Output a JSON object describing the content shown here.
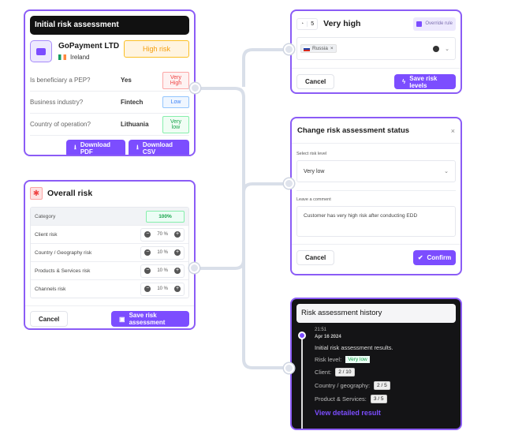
{
  "initial": {
    "title": "Initial risk assessment",
    "company": "GoPayment LTD",
    "country": "Ireland",
    "risk": "High risk",
    "questions": [
      {
        "q": "Is beneficiary a PEP?",
        "a": "Yes",
        "level": "Very High",
        "color": "#ef4444"
      },
      {
        "q": "Business industry?",
        "a": "Fintech",
        "level": "Low",
        "color": "#3b82f6"
      },
      {
        "q": "Country of operation?",
        "a": "Lithuania",
        "level": "Very low",
        "color": "#16a34a"
      }
    ],
    "download_pdf": "Download PDF",
    "download_csv": "Download CSV"
  },
  "overall": {
    "title": "Overall risk",
    "header_label": "Category",
    "header_total": "100%",
    "rows": [
      {
        "label": "Client risk",
        "value": "70 %"
      },
      {
        "label": "Country / Geography risk",
        "value": "10 %"
      },
      {
        "label": "Products & Services risk",
        "value": "10 %"
      },
      {
        "label": "Channels risk",
        "value": "10 %"
      }
    ],
    "cancel": "Cancel",
    "save": "Save risk assessment"
  },
  "level": {
    "number": "5",
    "title": "Very high",
    "override": "Override rule",
    "tag": "Russia",
    "cancel": "Cancel",
    "save": "Save risk levels"
  },
  "status": {
    "title": "Change risk assessment status",
    "select_label": "Select risk level",
    "select_value": "Very low",
    "comment_label": "Leave a comment",
    "comment": "Customer has very high risk after conducting EDD",
    "cancel": "Cancel",
    "confirm": "Confirm"
  },
  "history": {
    "title": "Risk assessment history",
    "time": "21:51",
    "date": "Apr 16 2024",
    "summary": "Initial risk assessment results.",
    "risk_label": "Risk level:",
    "risk_value": "Very low",
    "client_label": "Client:",
    "client_value": "2 / 10",
    "country_label": "Country / geography:",
    "country_value": "2 / 5",
    "product_label": "Product & Services:",
    "product_value": "3 / 5",
    "link": "View detailed result"
  },
  "colors": {
    "accent": "#7c4dff",
    "connector": "#d7dde8"
  }
}
